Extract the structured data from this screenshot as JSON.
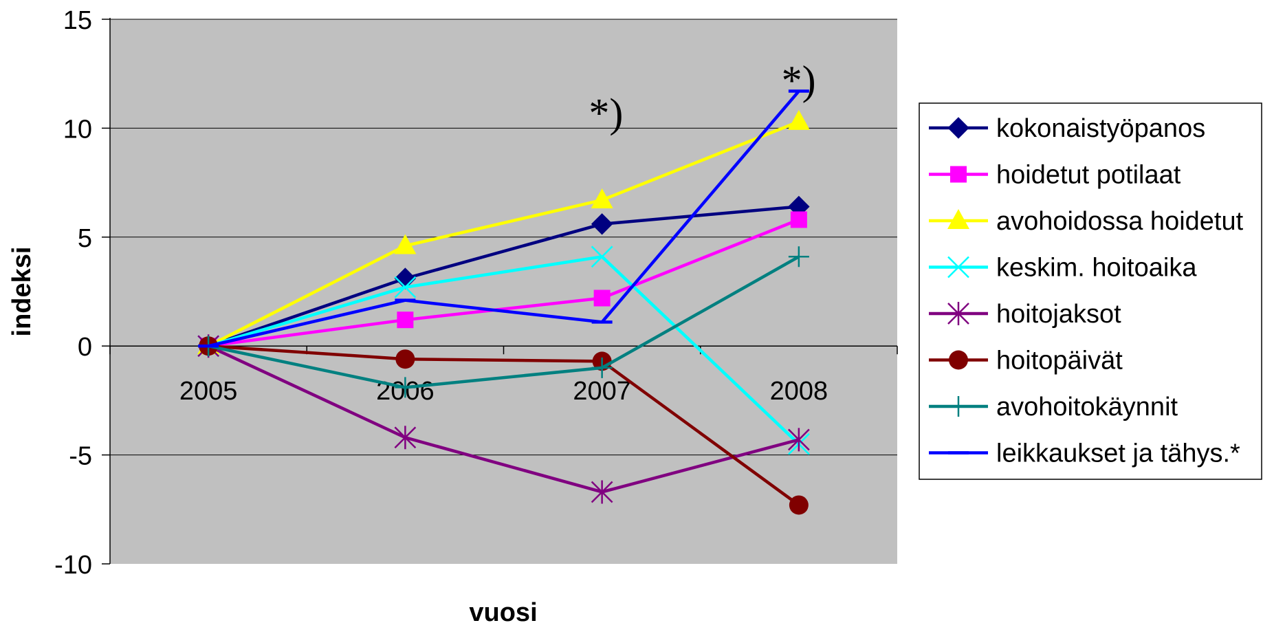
{
  "chart_data": {
    "type": "line",
    "title": "",
    "xlabel": "vuosi",
    "ylabel": "indeksi",
    "categories": [
      "2005",
      "2006",
      "2007",
      "2008"
    ],
    "ylim": [
      -10,
      15
    ],
    "yticks": [
      15,
      10,
      5,
      0,
      -5,
      -10
    ],
    "grid": true,
    "plot_background": "#c0c0c0",
    "legend_position": "right",
    "annotations": [
      {
        "text": "*)",
        "x": "between 2006 and 2007",
        "y": 10
      },
      {
        "text": "*)",
        "x": "between 2007 and 2008",
        "y": 11.5
      }
    ],
    "series": [
      {
        "name": "kokonaistyöpanos",
        "values": [
          0,
          3.1,
          5.6,
          6.4
        ],
        "color": "#000080",
        "marker": "diamond"
      },
      {
        "name": "hoidetut potilaat",
        "values": [
          0,
          1.2,
          2.2,
          5.8
        ],
        "color": "#ff00ff",
        "marker": "square"
      },
      {
        "name": "avohoidossa hoidetut",
        "values": [
          0,
          4.6,
          6.7,
          10.3
        ],
        "color": "#ffff00",
        "marker": "triangle"
      },
      {
        "name": "keskim. hoitoaika",
        "values": [
          0,
          2.7,
          4.1,
          -4.5
        ],
        "color": "#00ffff",
        "marker": "x"
      },
      {
        "name": "hoitojaksot",
        "values": [
          0,
          -4.2,
          -6.7,
          -4.3
        ],
        "color": "#800080",
        "marker": "asterisk"
      },
      {
        "name": "hoitopäivät",
        "values": [
          0,
          -0.6,
          -0.7,
          -7.3
        ],
        "color": "#800000",
        "marker": "circle"
      },
      {
        "name": "avohoitokäynnit",
        "values": [
          0,
          -1.9,
          -1.0,
          4.1
        ],
        "color": "#008080",
        "marker": "plus"
      },
      {
        "name": "leikkaukset ja tähys.*",
        "values": [
          0,
          2.1,
          1.1,
          11.7
        ],
        "segments": [
          [
            0,
            2.1,
            1.1
          ],
          [
            1.1,
            11.7
          ]
        ],
        "color": "#0000ff",
        "marker": "dash"
      }
    ]
  }
}
